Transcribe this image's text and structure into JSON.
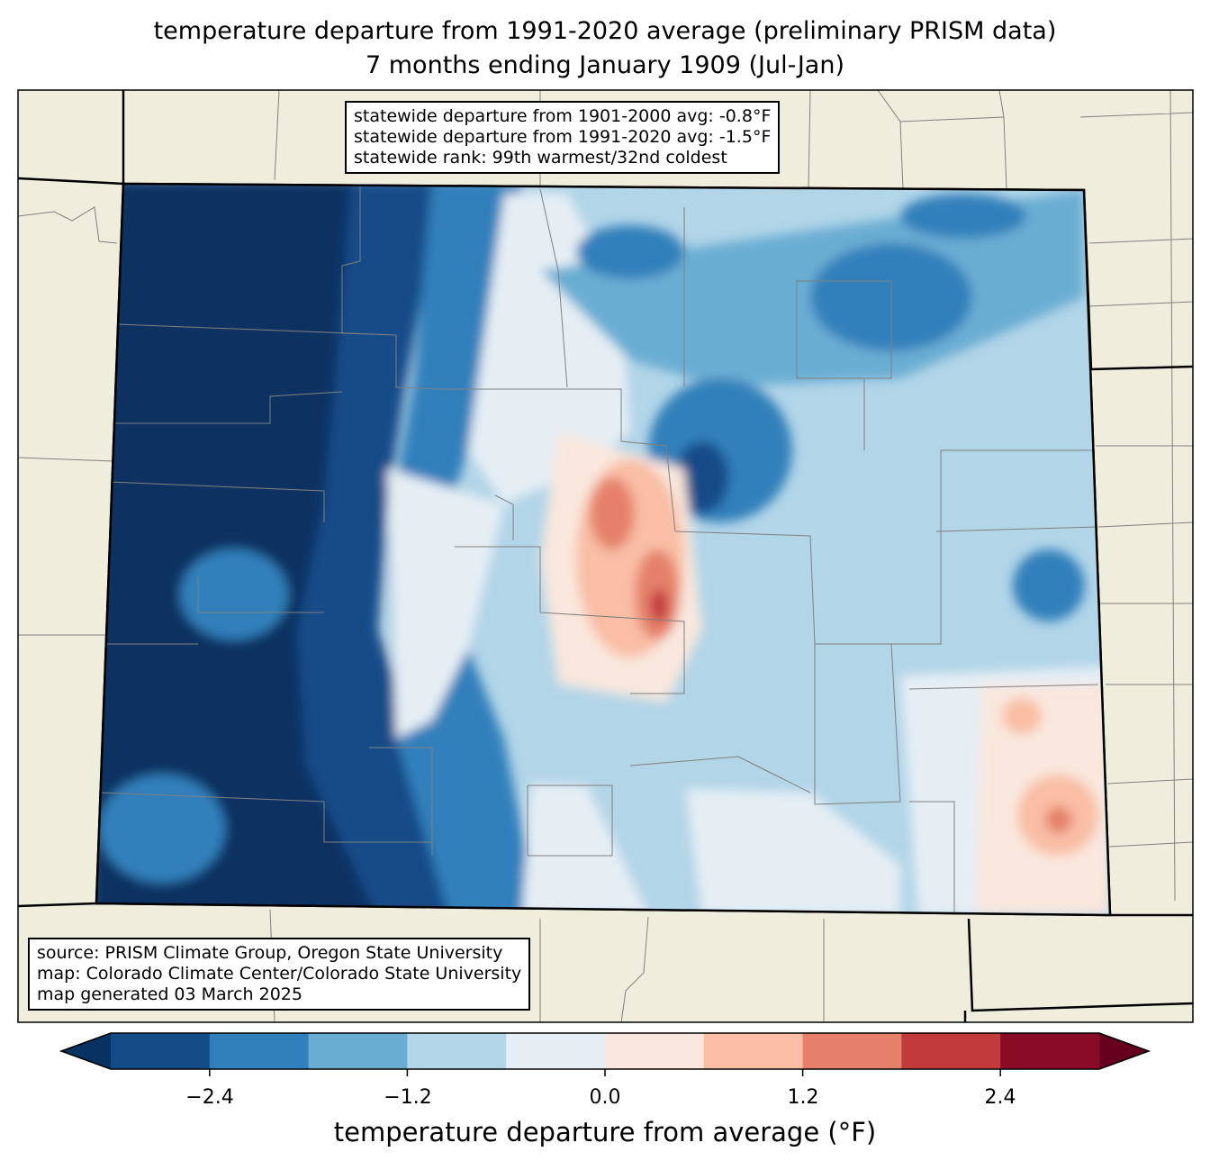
{
  "title": {
    "line1": "temperature departure from 1991-2020 average (preliminary PRISM data)",
    "line2": "7 months ending January 1909 (Jul-Jan)"
  },
  "stats_box": {
    "line1": "statewide departure from 1901-2000 avg: -0.8°F",
    "line2": "statewide departure from 1991-2020 avg: -1.5°F",
    "line3": "statewide rank: 99th warmest/32nd coldest"
  },
  "source_box": {
    "line1": "source: PRISM Climate Group, Oregon State University",
    "line2": "map: Colorado Climate Center/Colorado State University",
    "line3": "map generated 03 March 2025"
  },
  "colorbar": {
    "label": "temperature departure from average (°F)",
    "levels": [
      -3.0,
      -2.4,
      -1.8,
      -1.2,
      -0.6,
      0.0,
      0.6,
      1.2,
      1.8,
      2.4,
      3.0
    ],
    "colors": [
      "#144c88",
      "#3280bb",
      "#6aadd3",
      "#b2d5e8",
      "#e6eef4",
      "#f9e7dd",
      "#f9bea4",
      "#e5816a",
      "#c23b3c",
      "#8a0b26"
    ],
    "extend_low_color": "#083262",
    "extend_high_color": "#67001f",
    "ticks": [
      "−2.4",
      "−1.2",
      "0.0",
      "1.2",
      "2.4"
    ]
  },
  "colors": {
    "land": "#efeedc",
    "county_lines": "#808080"
  }
}
